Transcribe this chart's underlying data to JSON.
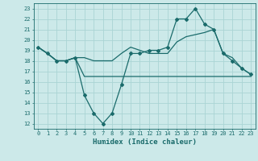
{
  "xlabel": "Humidex (Indice chaleur)",
  "xlim": [
    -0.5,
    23.5
  ],
  "ylim": [
    11.5,
    23.5
  ],
  "yticks": [
    12,
    13,
    14,
    15,
    16,
    17,
    18,
    19,
    20,
    21,
    22,
    23
  ],
  "xticks": [
    0,
    1,
    2,
    3,
    4,
    5,
    6,
    7,
    8,
    9,
    10,
    11,
    12,
    13,
    14,
    15,
    16,
    17,
    18,
    19,
    20,
    21,
    22,
    23
  ],
  "bg_color": "#cce9e9",
  "grid_color": "#aad4d4",
  "line_color": "#1a6b6b",
  "line1_x": [
    0,
    1,
    2,
    3,
    4,
    5,
    6,
    7,
    8,
    9,
    10,
    11,
    12,
    13,
    14,
    15,
    16,
    17,
    18,
    19,
    20,
    21,
    22,
    23
  ],
  "line1_y": [
    19.3,
    18.7,
    18.0,
    18.0,
    18.3,
    18.3,
    18.0,
    18.0,
    18.0,
    18.7,
    19.3,
    19.0,
    18.7,
    18.7,
    18.7,
    19.8,
    20.3,
    20.5,
    20.7,
    21.0,
    18.7,
    18.3,
    17.3,
    16.7
  ],
  "line2_x": [
    0,
    1,
    2,
    3,
    4,
    5,
    6,
    7,
    8,
    9,
    10,
    11,
    12,
    13,
    14,
    15,
    16,
    17,
    18,
    19,
    20,
    21,
    22,
    23
  ],
  "line2_y": [
    19.3,
    18.7,
    18.0,
    18.0,
    18.3,
    14.7,
    13.0,
    12.0,
    13.0,
    15.7,
    18.7,
    18.7,
    19.0,
    19.0,
    19.3,
    22.0,
    22.0,
    23.0,
    21.5,
    21.0,
    18.7,
    18.0,
    17.3,
    16.7
  ],
  "line3_x": [
    0,
    1,
    2,
    3,
    4,
    5,
    6,
    7,
    8,
    9,
    10,
    11,
    12,
    13,
    14,
    15,
    16,
    17,
    18,
    19,
    20,
    21,
    22,
    23
  ],
  "line3_y": [
    19.3,
    18.7,
    18.0,
    18.0,
    18.3,
    16.5,
    16.5,
    16.5,
    16.5,
    16.5,
    16.5,
    16.5,
    16.5,
    16.5,
    16.5,
    16.5,
    16.5,
    16.5,
    16.5,
    16.5,
    16.5,
    16.5,
    16.5,
    16.5
  ]
}
